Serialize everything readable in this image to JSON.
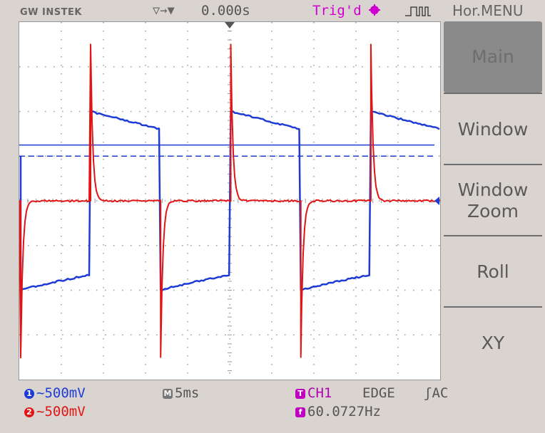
{
  "top_bar": {
    "brand": "GW INSTEK",
    "horizontal_position_icon": "▽→▼",
    "horizontal_position": "0.000s",
    "trigger_status": "Trig'd",
    "menu_title": "Hor.MENU"
  },
  "side_menu": {
    "items": [
      {
        "label": "Main",
        "active": true
      },
      {
        "label": "Window",
        "active": false
      },
      {
        "label": "Window\nZoom",
        "active": false
      },
      {
        "label": "Roll",
        "active": false
      },
      {
        "label": "XY",
        "active": false
      }
    ]
  },
  "status": {
    "ch1_badge": "1",
    "ch1_scale": "~500mV",
    "ch2_badge": "2",
    "ch2_scale": "~500mV",
    "timebase_badge": "M",
    "timebase": "5ms",
    "trigger_badge": "T",
    "trigger_source": "CH1",
    "trigger_type": "EDGE",
    "trigger_coupling": "ʃAC",
    "frequency_badge": "f",
    "frequency": "60.0727Hz"
  },
  "colors": {
    "ch1": "#1e3bd6",
    "ch2": "#e01515",
    "trigger": "#c000c0",
    "grid": "#9a9a9a"
  },
  "chart_data": {
    "type": "line",
    "grid_divisions": [
      10,
      8
    ],
    "grid": true,
    "series": [
      {
        "name": "CH1",
        "period_div": 3.33,
        "high_level_div": [
          2.0,
          1.6
        ],
        "low_level_div": [
          -2.0,
          -1.65
        ],
        "cursor_solid_div": 1.25,
        "cursor_dashed_div": 1.0
      },
      {
        "name": "CH2",
        "baseline_div": 0.0,
        "spike_high_div": 3.5,
        "spike_low_div": -3.5
      }
    ]
  }
}
